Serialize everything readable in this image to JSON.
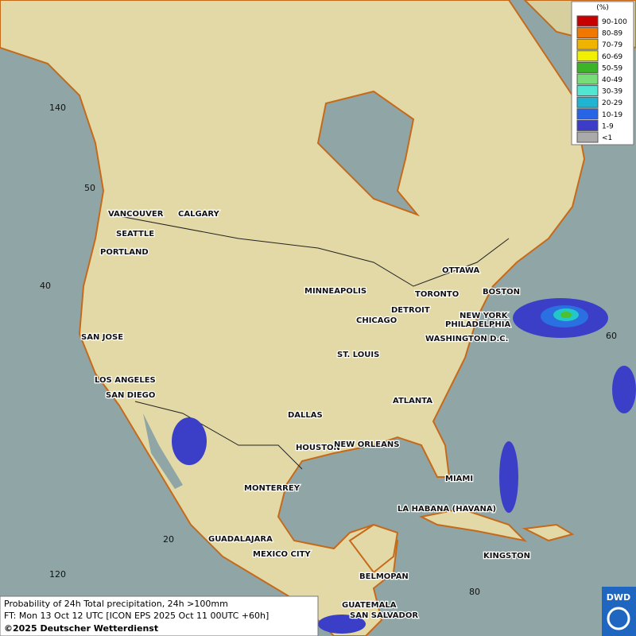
{
  "legend": {
    "title": "(%)",
    "items": [
      "90-100",
      "80-89",
      "70-79",
      "60-69",
      "50-59",
      "40-49",
      "30-39",
      "20-29",
      "10-19",
      "1-9",
      "<1"
    ]
  },
  "cities": [
    "VANCOUVER",
    "CALGARY",
    "SEATTLE",
    "PORTLAND",
    "MINNEAPOLIS",
    "OTTAWA",
    "TORONTO",
    "BOSTON",
    "DETROIT",
    "NEW YORK",
    "CHICAGO",
    "PHILADELPHIA",
    "SAN JOSE",
    "WASHINGTON D.C.",
    "ST. LOUIS",
    "LOS ANGELES",
    "SAN DIEGO",
    "ATLANTA",
    "DALLAS",
    "HOUSTON",
    "NEW ORLEANS",
    "MIAMI",
    "MONTERREY",
    "LA HABANA (HAVANA)",
    "GUADALAJARA",
    "MEXICO CITY",
    "KINGSTON",
    "BELMOPAN",
    "GUATEMALA",
    "SAN SALVADOR"
  ],
  "grid_labels": [
    "140",
    "50",
    "40",
    "60",
    "20",
    "120",
    "80"
  ],
  "footer": {
    "line1": "Probability of 24h Total precipitation, 24h >100mm",
    "line2": "FT: Mon 13 Oct 12 UTC [ICON EPS 2025 Oct 11 00UTC +60h]",
    "line3": "©2025 Deutscher Wetterdienst"
  },
  "logo": "DWD"
}
